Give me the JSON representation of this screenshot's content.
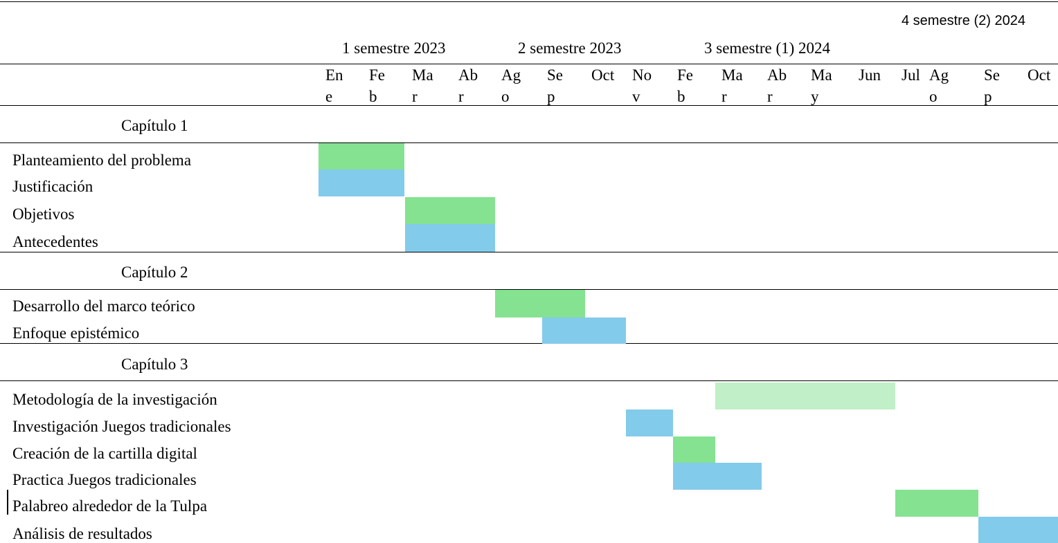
{
  "colors": {
    "green": "#84e291",
    "blue": "#83cbea",
    "light_green": "#c1efc7"
  },
  "semesters": [
    {
      "label": "1 semestre 2023"
    },
    {
      "label": "2 semestre 2023"
    },
    {
      "label": "3 semestre (1) 2024"
    },
    {
      "label": "4 semestre (2) 2024"
    }
  ],
  "months": [
    "Ene",
    "Feb",
    "Mar",
    "Abr",
    "Ago",
    "Sep",
    "Oct",
    "Nov",
    "Feb",
    "Mar",
    "Abr",
    "May",
    "Jun",
    "Jul",
    "Ago",
    "Sep",
    "Oct"
  ],
  "chapters": [
    "Capítulo 1",
    "Capítulo 2",
    "Capítulo 3"
  ],
  "tasks": [
    {
      "label": "Planteamiento del problema",
      "start_month": "Ene",
      "end_month": "Feb",
      "color": "green"
    },
    {
      "label": "Justificación",
      "start_month": "Ene",
      "end_month": "Feb",
      "color": "blue"
    },
    {
      "label": "Objetivos",
      "start_month": "Mar",
      "end_month": "Abr",
      "color": "green"
    },
    {
      "label": "Antecedentes",
      "start_month": "Mar",
      "end_month": "Abr",
      "color": "blue"
    },
    {
      "label": "Desarrollo del marco teórico",
      "start_month": "Ago",
      "end_month": "Sep",
      "color": "green"
    },
    {
      "label": "Enfoque epistémico",
      "start_month": "Sep",
      "end_month": "Oct",
      "color": "blue"
    },
    {
      "label": "Metodología de la investigación",
      "start_month": "Mar",
      "end_month": "Jun",
      "color": "light_green"
    },
    {
      "label": "Investigación Juegos tradicionales",
      "start_month": "Nov",
      "end_month": "Nov",
      "color": "blue"
    },
    {
      "label": "Creación de la cartilla digital",
      "start_month": "Feb",
      "end_month": "Feb",
      "color": "green"
    },
    {
      "label": "Practica Juegos tradicionales",
      "start_month": "Feb",
      "end_month": "Mar",
      "color": "blue"
    },
    {
      "label": "Palabreo alrededor de la Tulpa",
      "start_month": "Jul",
      "end_month": "Ago",
      "color": "green"
    },
    {
      "label": "Análisis de resultados",
      "start_month": "Sep",
      "end_month": "Oct",
      "color": "blue"
    }
  ]
}
